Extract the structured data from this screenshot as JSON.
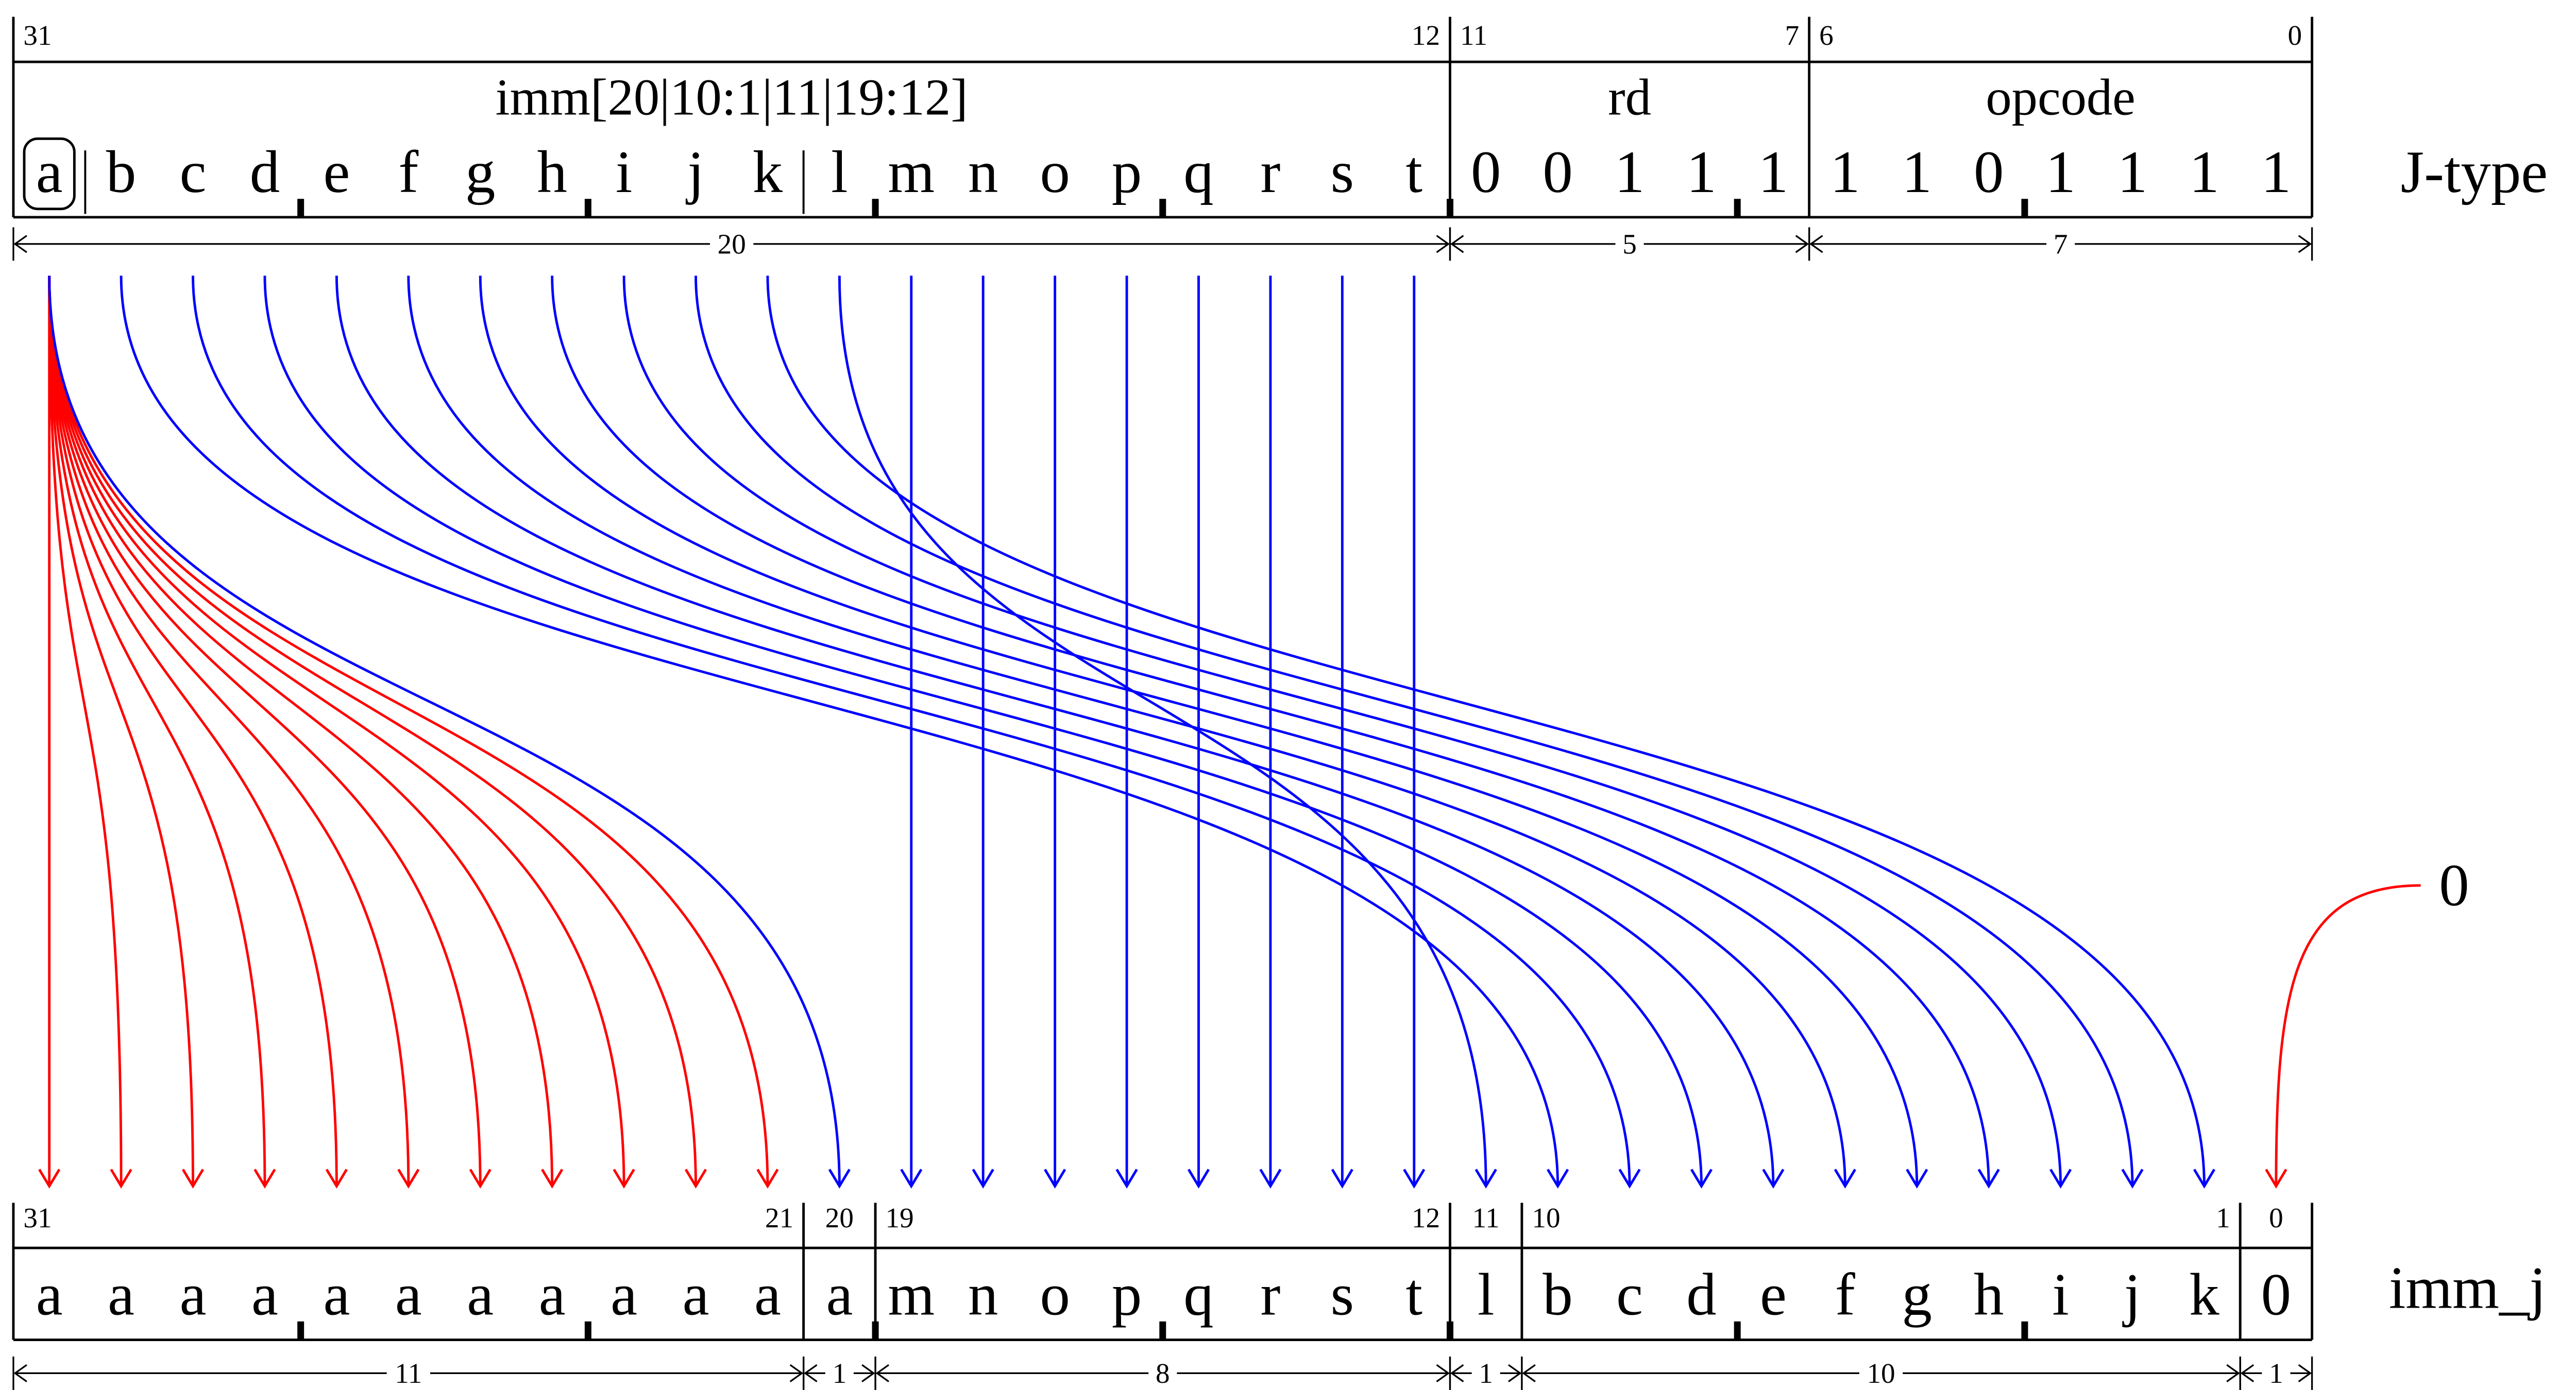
{
  "top": {
    "label": "J-type",
    "fields": [
      {
        "hi": 31,
        "lo": 12,
        "title": "imm[20|10:1|11|19:12]",
        "width": 20
      },
      {
        "hi": 11,
        "lo": 7,
        "title": "rd",
        "width": 5
      },
      {
        "hi": 6,
        "lo": 0,
        "title": "opcode",
        "width": 7
      }
    ],
    "bits": [
      "a",
      "b",
      "c",
      "d",
      "e",
      "f",
      "g",
      "h",
      "i",
      "j",
      "k",
      "l",
      "m",
      "n",
      "o",
      "p",
      "q",
      "r",
      "s",
      "t",
      "0",
      "0",
      "1",
      "1",
      "1",
      "1",
      "1",
      "0",
      "1",
      "1",
      "1",
      "1"
    ]
  },
  "bottom": {
    "label": "imm_j",
    "fields": [
      {
        "hi": 31,
        "lo": 21,
        "width": 11
      },
      {
        "hi": 20,
        "width": 1
      },
      {
        "hi": 19,
        "lo": 12,
        "width": 8
      },
      {
        "hi": 11,
        "width": 1
      },
      {
        "hi": 10,
        "lo": 1,
        "width": 10
      },
      {
        "hi": 0,
        "width": 1
      }
    ],
    "bits": [
      "a",
      "a",
      "a",
      "a",
      "a",
      "a",
      "a",
      "a",
      "a",
      "a",
      "a",
      "a",
      "m",
      "n",
      "o",
      "p",
      "q",
      "r",
      "s",
      "t",
      "l",
      "b",
      "c",
      "d",
      "e",
      "f",
      "g",
      "h",
      "i",
      "j",
      "k",
      "0"
    ]
  },
  "fill_bit": "0"
}
